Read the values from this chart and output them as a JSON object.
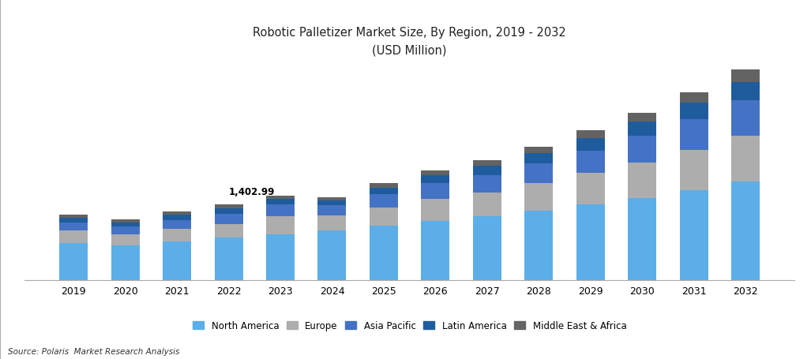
{
  "title_line1": "Robotic Palletizer Market Size, By Region, 2019 - 2032",
  "title_line2": "(USD Million)",
  "source": "Source: Polaris  Market Research Analysis",
  "annotation_year_idx": 4,
  "annotation_text": "1,402.99",
  "years": [
    2019,
    2020,
    2021,
    2022,
    2023,
    2024,
    2025,
    2026,
    2027,
    2028,
    2029,
    2030,
    2031,
    2032
  ],
  "regions": [
    "North America",
    "Europe",
    "Asia Pacific",
    "Latin America",
    "Middle East & Africa"
  ],
  "colors": [
    "#5BAEE8",
    "#ADADAD",
    "#4472C4",
    "#1F5C9E",
    "#636363"
  ],
  "data": {
    "North America": [
      620,
      580,
      640,
      700,
      760,
      820,
      900,
      980,
      1060,
      1150,
      1260,
      1370,
      1500,
      1640
    ],
    "Europe": [
      200,
      180,
      210,
      230,
      300,
      260,
      310,
      370,
      400,
      460,
      520,
      590,
      670,
      760
    ],
    "Asia Pacific": [
      140,
      130,
      150,
      170,
      200,
      170,
      220,
      260,
      290,
      330,
      380,
      440,
      510,
      590
    ],
    "Latin America": [
      80,
      70,
      85,
      95,
      90,
      80,
      110,
      130,
      150,
      175,
      205,
      240,
      275,
      315
    ],
    "Middle East & Africa": [
      53,
      45,
      58,
      68,
      53,
      48,
      70,
      85,
      95,
      110,
      130,
      150,
      175,
      200
    ]
  },
  "ylim": [
    0,
    3600
  ],
  "bar_width": 0.55,
  "figsize": [
    10.27,
    4.56
  ],
  "dpi": 100
}
